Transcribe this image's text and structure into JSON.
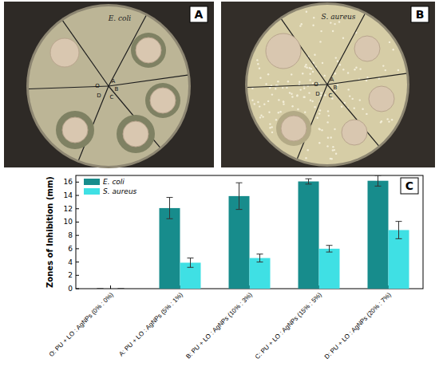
{
  "panel_labels": [
    "A",
    "B",
    "C"
  ],
  "dishes": [
    {
      "organism": "E. coli",
      "sector_labels": [
        "O",
        "A",
        "B",
        "C",
        "D"
      ]
    },
    {
      "organism": "S. aureus",
      "sector_labels": [
        "O",
        "A",
        "B",
        "C",
        "D"
      ]
    }
  ],
  "chart_data": {
    "type": "bar",
    "y_label": "Zones of Inhibition (mm)",
    "categories": [
      "O: PU + LO : AgNPs (0% : 0%)",
      "A: PU + LO : AgNPs (5% : 1%)",
      "B: PU + LO : AgNPs (10% : 3%)",
      "C: PU + LO : AgNPs (15% : 5%)",
      "D: PU + LO : AgNPs (20% : 7%)"
    ],
    "series": [
      {
        "name": "E. coli",
        "color": "#178c8c",
        "values": [
          0,
          12.1,
          13.9,
          16.1,
          16.2
        ],
        "errors": [
          0,
          1.6,
          2.0,
          0.4,
          0.8
        ]
      },
      {
        "name": "S. aureus",
        "color": "#3fe0e4",
        "values": [
          0,
          3.9,
          4.6,
          6.0,
          8.8
        ],
        "errors": [
          0,
          0.7,
          0.6,
          0.5,
          1.3
        ]
      }
    ],
    "ylim": [
      0,
      17
    ],
    "yticks": [
      0,
      2,
      4,
      6,
      8,
      10,
      12,
      14,
      16
    ],
    "legend": "upper left",
    "grid": false
  }
}
